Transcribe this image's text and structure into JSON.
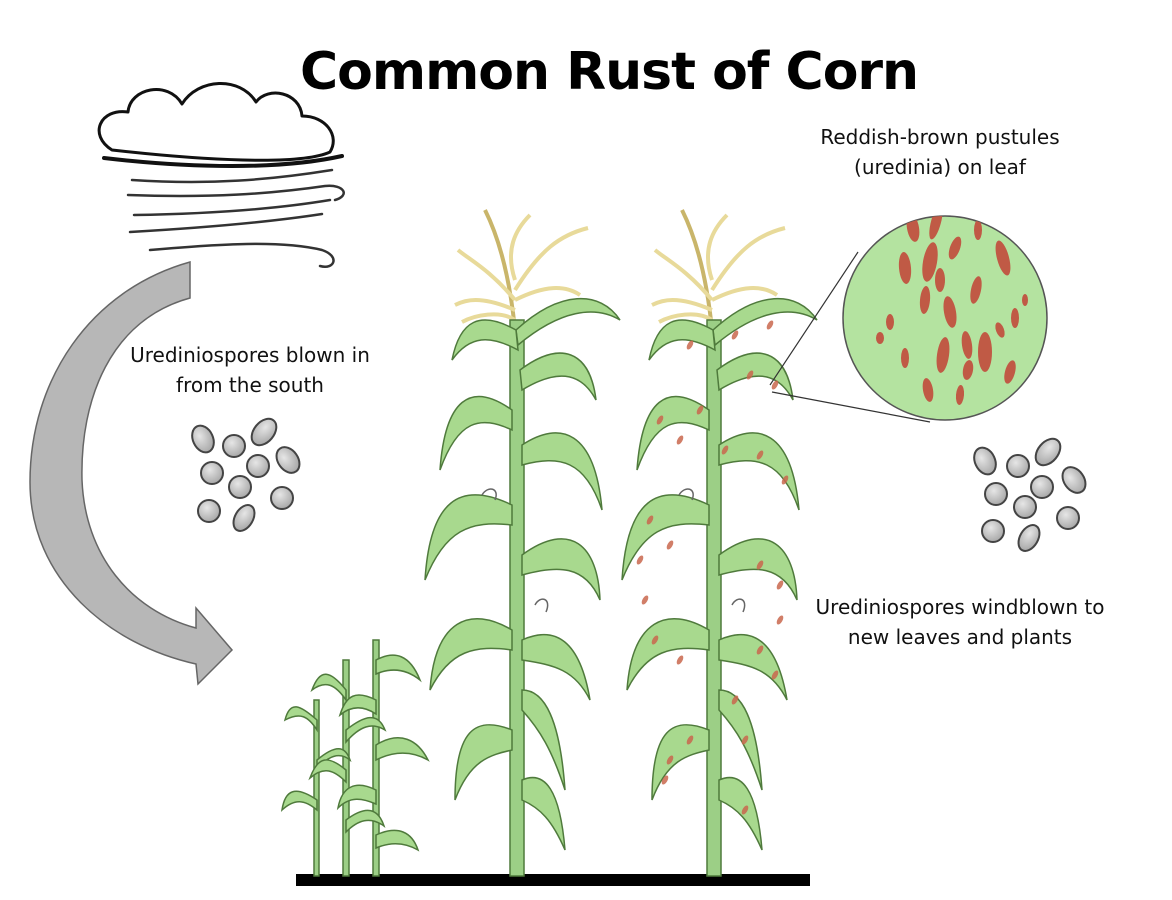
{
  "title": "Common Rust of Corn",
  "labels": {
    "spores_south": [
      "Urediniospores blown in",
      "from the south"
    ],
    "pustules": [
      "Reddish-brown pustules",
      "(uredinia) on leaf"
    ],
    "windblown": [
      "Urediniospores windblown to",
      "new leaves and plants"
    ]
  },
  "colors": {
    "leaf": "#a8d98e",
    "leaf_dark": "#7fb868",
    "stalk": "#9ccf86",
    "tassel": "#f1e6b0",
    "pustule": "#c0604a",
    "spore": "#bdbdbd",
    "arrow": "#b5b5b5",
    "ground": "#000000"
  },
  "icons": [
    "cloud-icon",
    "wind-icon",
    "curved-arrow-icon",
    "spore-cluster-icon",
    "magnified-leaf-icon"
  ]
}
